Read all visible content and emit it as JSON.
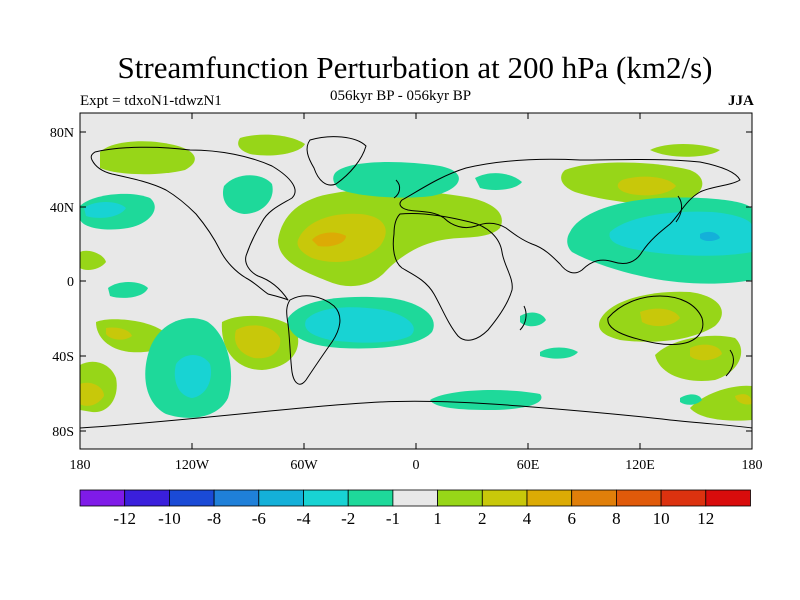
{
  "title": "Streamfunction Perturbation at 200 hPa (km2/s)",
  "left_subtitle": "Expt = tdxoN1-tdwzN1",
  "center_subtitle": "056kyr BP - 056kyr BP",
  "right_subtitle": "JJA",
  "lat_ticks": [
    "80N",
    "40N",
    "0",
    "40S",
    "80S"
  ],
  "lon_ticks": [
    "180",
    "120W",
    "60W",
    "0",
    "60E",
    "120E",
    "180"
  ],
  "colorbar": {
    "labels": [
      "-12",
      "-10",
      "-8",
      "-6",
      "-4",
      "-2",
      "-1",
      "1",
      "2",
      "4",
      "6",
      "8",
      "10",
      "12"
    ],
    "colors": [
      "#7f1be8",
      "#3a1fdc",
      "#1a4ad6",
      "#1f80d9",
      "#14b0d9",
      "#18d3d3",
      "#1ed99a",
      "#e8e8e8",
      "#97d618",
      "#c8c80a",
      "#dcab05",
      "#e07f0a",
      "#e05a0a",
      "#dc320f",
      "#d90c0c"
    ]
  },
  "colors": {
    "background": "#e8e8e8",
    "pos1": "#97d618",
    "pos2": "#c8c80a",
    "pos4": "#dcab05",
    "neg1": "#1ed99a",
    "neg2": "#18d3d3"
  }
}
